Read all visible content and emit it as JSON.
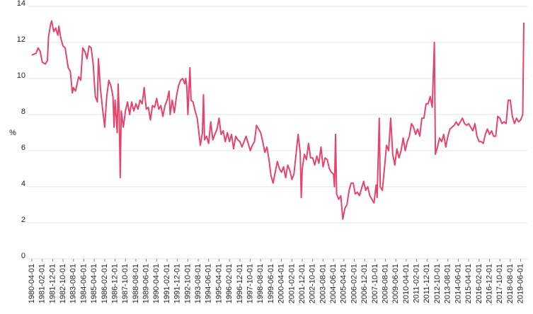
{
  "chart_data": {
    "type": "line",
    "y_label": "%",
    "color": "#e5446d",
    "grid": true,
    "ylim": [
      0,
      14
    ],
    "yticks": [
      0,
      2,
      4,
      6,
      8,
      10,
      12,
      14
    ],
    "xlim": [
      "1980-04-01",
      "2019-09-01"
    ],
    "xticks": [
      "1980-04-01",
      "1981-02-01",
      "1981-12-01",
      "1982-10-01",
      "1983-08-01",
      "1984-06-01",
      "1985-04-01",
      "1986-02-01",
      "1986-12-01",
      "1987-10-01",
      "1988-08-01",
      "1989-06-01",
      "1990-04-01",
      "1991-02-01",
      "1991-12-01",
      "1992-10-01",
      "1993-08-01",
      "1994-06-01",
      "1995-04-01",
      "1996-02-01",
      "1996-12-01",
      "1997-10-01",
      "1998-08-01",
      "1999-06-01",
      "2000-04-01",
      "2001-02-01",
      "2001-12-01",
      "2002-10-01",
      "2003-08-01",
      "2004-06-01",
      "2005-04-01",
      "2006-02-01",
      "2006-12-01",
      "2007-10-01",
      "2008-08-01",
      "2009-06-01",
      "2010-04-01",
      "2011-02-01",
      "2011-12-01",
      "2012-10-01",
      "2013-08-01",
      "2014-06-01",
      "2015-04-01",
      "2016-02-01",
      "2016-12-01",
      "2017-10-01",
      "2018-08-01",
      "2019-06-01"
    ],
    "x": [
      "1980-04-01",
      "1980-08-01",
      "1980-10-01",
      "1980-12-01",
      "1981-02-01",
      "1981-05-01",
      "1981-07-01",
      "1981-08-01",
      "1981-10-01",
      "1981-11-01",
      "1982-01-01",
      "1982-03-01",
      "1982-05-01",
      "1982-06-01",
      "1982-08-01",
      "1982-10-01",
      "1982-12-01",
      "1983-03-01",
      "1983-05-01",
      "1983-07-01",
      "1983-08-01",
      "1983-10-01",
      "1984-01-01",
      "1984-03-01",
      "1984-05-01",
      "1984-07-01",
      "1984-09-01",
      "1984-11-01",
      "1985-01-01",
      "1985-03-01",
      "1985-05-01",
      "1985-07-01",
      "1985-08-01",
      "1985-10-01",
      "1985-12-01",
      "1986-02-01",
      "1986-04-01",
      "1986-06-01",
      "1986-08-01",
      "1986-10-01",
      "1986-11-01",
      "1986-12-01",
      "1987-02-01",
      "1987-03-01",
      "1987-04-01",
      "1987-05-01",
      "1987-06-01",
      "1987-08-01",
      "1987-10-01",
      "1987-12-01",
      "1988-02-01",
      "1988-04-01",
      "1988-06-01",
      "1988-08-01",
      "1988-10-01",
      "1988-12-01",
      "1989-02-01",
      "1989-04-01",
      "1989-06-01",
      "1989-08-01",
      "1989-10-01",
      "1989-12-01",
      "1990-02-01",
      "1990-04-01",
      "1990-06-01",
      "1990-08-01",
      "1990-10-01",
      "1990-12-01",
      "1991-02-01",
      "1991-04-01",
      "1991-05-01",
      "1991-07-01",
      "1991-09-01",
      "1991-11-01",
      "1992-01-01",
      "1992-03-01",
      "1992-05-01",
      "1992-07-01",
      "1992-08-01",
      "1992-09-01",
      "1992-10-01",
      "1992-12-01",
      "1993-01-01",
      "1993-03-01",
      "1993-05-01",
      "1993-07-01",
      "1993-08-01",
      "1993-10-01",
      "1993-12-01",
      "1994-01-01",
      "1994-02-01",
      "1994-04-01",
      "1994-06-01",
      "1994-08-01",
      "1994-10-01",
      "1994-12-01",
      "1995-02-01",
      "1995-04-01",
      "1995-06-01",
      "1995-08-01",
      "1995-10-01",
      "1995-12-01",
      "1996-02-01",
      "1996-04-01",
      "1996-06-01",
      "1996-08-01",
      "1996-10-01",
      "1996-12-01",
      "1997-02-01",
      "1997-04-01",
      "1997-06-01",
      "1997-08-01",
      "1997-10-01",
      "1997-12-01",
      "1998-02-01",
      "1998-04-01",
      "1998-06-01",
      "1998-08-01",
      "1998-10-01",
      "1998-12-01",
      "1999-02-01",
      "1999-04-01",
      "1999-06-01",
      "1999-08-01",
      "1999-10-01",
      "1999-12-01",
      "2000-02-01",
      "2000-04-01",
      "2000-06-01",
      "2000-08-01",
      "2000-10-01",
      "2000-12-01",
      "2001-02-01",
      "2001-04-01",
      "2001-06-01",
      "2001-08-01",
      "2001-10-01",
      "2001-11-01",
      "2001-12-01",
      "2002-02-01",
      "2002-04-01",
      "2002-06-01",
      "2002-08-01",
      "2002-10-01",
      "2002-12-01",
      "2003-02-01",
      "2003-04-01",
      "2003-06-01",
      "2003-08-01",
      "2003-10-01",
      "2003-12-01",
      "2004-02-01",
      "2004-04-01",
      "2004-06-01",
      "2004-07-01",
      "2004-08-01",
      "2004-09-01",
      "2004-11-01",
      "2005-01-01",
      "2005-03-01",
      "2005-05-01",
      "2005-07-01",
      "2005-09-01",
      "2005-11-01",
      "2006-01-01",
      "2006-03-01",
      "2006-05-01",
      "2006-07-01",
      "2006-09-01",
      "2006-11-01",
      "2007-01-01",
      "2007-03-01",
      "2007-05-01",
      "2007-07-01",
      "2007-09-01",
      "2007-11-01",
      "2007-12-01",
      "2008-02-01",
      "2008-03-01",
      "2008-05-01",
      "2008-07-01",
      "2008-09-01",
      "2008-11-01",
      "2009-01-01",
      "2009-03-01",
      "2009-05-01",
      "2009-07-01",
      "2009-09-01",
      "2009-11-01",
      "2010-01-01",
      "2010-03-01",
      "2010-05-01",
      "2010-07-01",
      "2010-09-01",
      "2010-11-01",
      "2011-01-01",
      "2011-03-01",
      "2011-05-01",
      "2011-07-01",
      "2011-09-01",
      "2011-11-01",
      "2012-01-01",
      "2012-03-01",
      "2012-05-01",
      "2012-07-01",
      "2012-08-01",
      "2012-10-01",
      "2012-12-01",
      "2013-02-01",
      "2013-04-01",
      "2013-06-01",
      "2013-08-01",
      "2013-10-01",
      "2013-12-01",
      "2014-02-01",
      "2014-04-01",
      "2014-06-01",
      "2014-08-01",
      "2014-10-01",
      "2014-12-01",
      "2015-02-01",
      "2015-04-01",
      "2015-06-01",
      "2015-08-01",
      "2015-10-01",
      "2015-12-01",
      "2016-02-01",
      "2016-04-01",
      "2016-06-01",
      "2016-08-01",
      "2016-10-01",
      "2016-12-01",
      "2017-02-01",
      "2017-04-01",
      "2017-06-01",
      "2017-08-01",
      "2017-10-01",
      "2017-12-01",
      "2018-02-01",
      "2018-04-01",
      "2018-06-01",
      "2018-08-01",
      "2018-10-01",
      "2018-12-01",
      "2019-02-01",
      "2019-04-01",
      "2019-06-01",
      "2019-08-01",
      "2019-09-01"
    ],
    "values": [
      11.3,
      11.4,
      11.7,
      11.5,
      10.9,
      10.8,
      11.0,
      12.3,
      13.0,
      13.2,
      12.6,
      12.8,
      12.4,
      12.9,
      12.2,
      11.8,
      11.7,
      10.6,
      10.4,
      9.2,
      9.5,
      9.3,
      10.1,
      9.9,
      11.7,
      11.5,
      11.1,
      11.8,
      11.7,
      10.8,
      9.0,
      8.7,
      11.1,
      9.4,
      8.3,
      7.3,
      9.0,
      9.9,
      9.6,
      9.0,
      7.3,
      8.8,
      7.0,
      9.7,
      8.0,
      4.5,
      8.2,
      7.3,
      8.2,
      8.7,
      8.0,
      8.7,
      8.2,
      8.6,
      8.3,
      8.8,
      8.6,
      9.5,
      8.3,
      8.4,
      7.7,
      8.5,
      8.4,
      8.9,
      8.3,
      8.5,
      7.9,
      8.5,
      8.8,
      9.3,
      8.0,
      8.8,
      8.1,
      9.0,
      9.6,
      9.9,
      10.0,
      9.7,
      10.0,
      9.5,
      8.0,
      10.6,
      8.8,
      8.7,
      8.2,
      7.8,
      7.3,
      6.3,
      7.0,
      9.1,
      6.6,
      6.8,
      6.4,
      7.6,
      6.6,
      6.9,
      7.2,
      7.8,
      6.9,
      7.1,
      6.5,
      7.0,
      6.5,
      6.9,
      6.1,
      6.8,
      6.6,
      6.5,
      6.2,
      6.5,
      6.8,
      6.4,
      6.0,
      6.3,
      6.5,
      7.4,
      7.2,
      7.0,
      6.5,
      5.9,
      6.2,
      5.5,
      4.6,
      4.2,
      4.8,
      5.4,
      5.0,
      4.8,
      5.1,
      4.5,
      5.2,
      4.9,
      4.4,
      4.7,
      5.8,
      6.9,
      5.9,
      3.4,
      5.0,
      5.8,
      5.5,
      6.4,
      5.6,
      5.6,
      5.2,
      5.7,
      5.3,
      6.2,
      5.1,
      5.6,
      5.5,
      5.0,
      4.8,
      4.7,
      4.0,
      6.9,
      3.6,
      3.3,
      3.5,
      2.2,
      2.8,
      3.0,
      3.8,
      4.2,
      4.2,
      3.6,
      3.7,
      3.5,
      3.9,
      4.3,
      3.8,
      4.0,
      3.5,
      3.3,
      3.1,
      4.1,
      3.4,
      7.8,
      4.0,
      3.8,
      5.0,
      6.3,
      6.0,
      7.8,
      5.8,
      5.2,
      6.1,
      5.6,
      6.0,
      6.7,
      6.0,
      6.5,
      6.8,
      7.5,
      7.3,
      6.9,
      7.2,
      6.8,
      7.8,
      7.8,
      8.6,
      8.6,
      9.0,
      8.4,
      12.0,
      5.8,
      6.2,
      6.7,
      6.5,
      6.9,
      6.2,
      6.8,
      7.2,
      7.3,
      7.4,
      7.6,
      7.4,
      7.6,
      7.8,
      7.5,
      7.4,
      7.5,
      7.3,
      7.1,
      7.5,
      6.8,
      6.5,
      6.5,
      6.4,
      6.9,
      7.2,
      6.9,
      7.1,
      6.8,
      6.8,
      7.9,
      7.8,
      7.5,
      7.6,
      7.5,
      8.8,
      8.8,
      7.9,
      7.5,
      7.8,
      7.6,
      7.7,
      8.0,
      13.1
    ]
  }
}
